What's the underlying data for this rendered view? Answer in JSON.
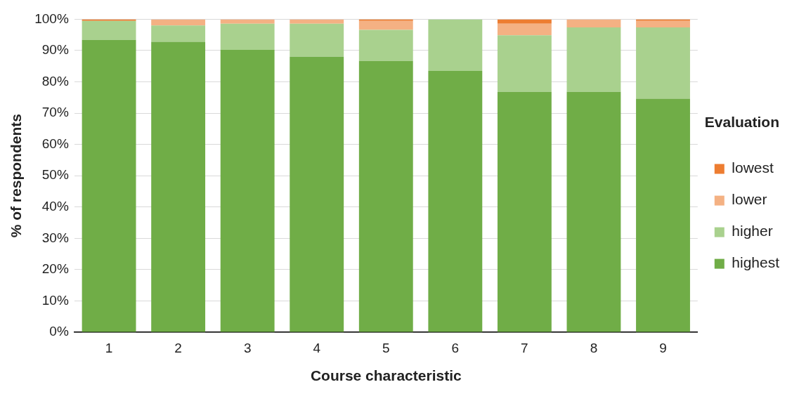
{
  "chart_data": {
    "type": "bar",
    "stacked": true,
    "xlabel": "Course characteristic",
    "ylabel": "% of respondents",
    "legend_title": "Evaluation",
    "legend": "right",
    "categories": [
      "1",
      "2",
      "3",
      "4",
      "5",
      "6",
      "7",
      "8",
      "9"
    ],
    "series": [
      {
        "name": "highest",
        "color": "#70ad47",
        "values": [
          93.4,
          92.8,
          90.2,
          88.0,
          86.7,
          83.5,
          76.8,
          76.8,
          74.6
        ]
      },
      {
        "name": "higher",
        "color": "#a9d18e",
        "values": [
          6.1,
          5.2,
          8.4,
          10.6,
          9.9,
          16.5,
          18.1,
          20.6,
          22.8
        ]
      },
      {
        "name": "lower",
        "color": "#f4b183",
        "values": [
          0,
          2.0,
          1.4,
          1.4,
          2.9,
          0,
          3.7,
          2.6,
          2.1
        ]
      },
      {
        "name": "lowest",
        "color": "#ed7d31",
        "values": [
          0.5,
          0,
          0,
          0,
          0.5,
          0,
          1.4,
          0,
          0.5
        ]
      }
    ],
    "ylim": [
      0,
      100
    ],
    "yticks": [
      {
        "value": 0,
        "label": "0%"
      },
      {
        "value": 10,
        "label": "10%"
      },
      {
        "value": 20,
        "label": "20%"
      },
      {
        "value": 30,
        "label": "30%"
      },
      {
        "value": 40,
        "label": "40%"
      },
      {
        "value": 50,
        "label": "50%"
      },
      {
        "value": 60,
        "label": "60%"
      },
      {
        "value": 70,
        "label": "70%"
      },
      {
        "value": 80,
        "label": "80%"
      },
      {
        "value": 90,
        "label": "90%"
      },
      {
        "value": 100,
        "label": "100%"
      }
    ],
    "grid": "y"
  }
}
